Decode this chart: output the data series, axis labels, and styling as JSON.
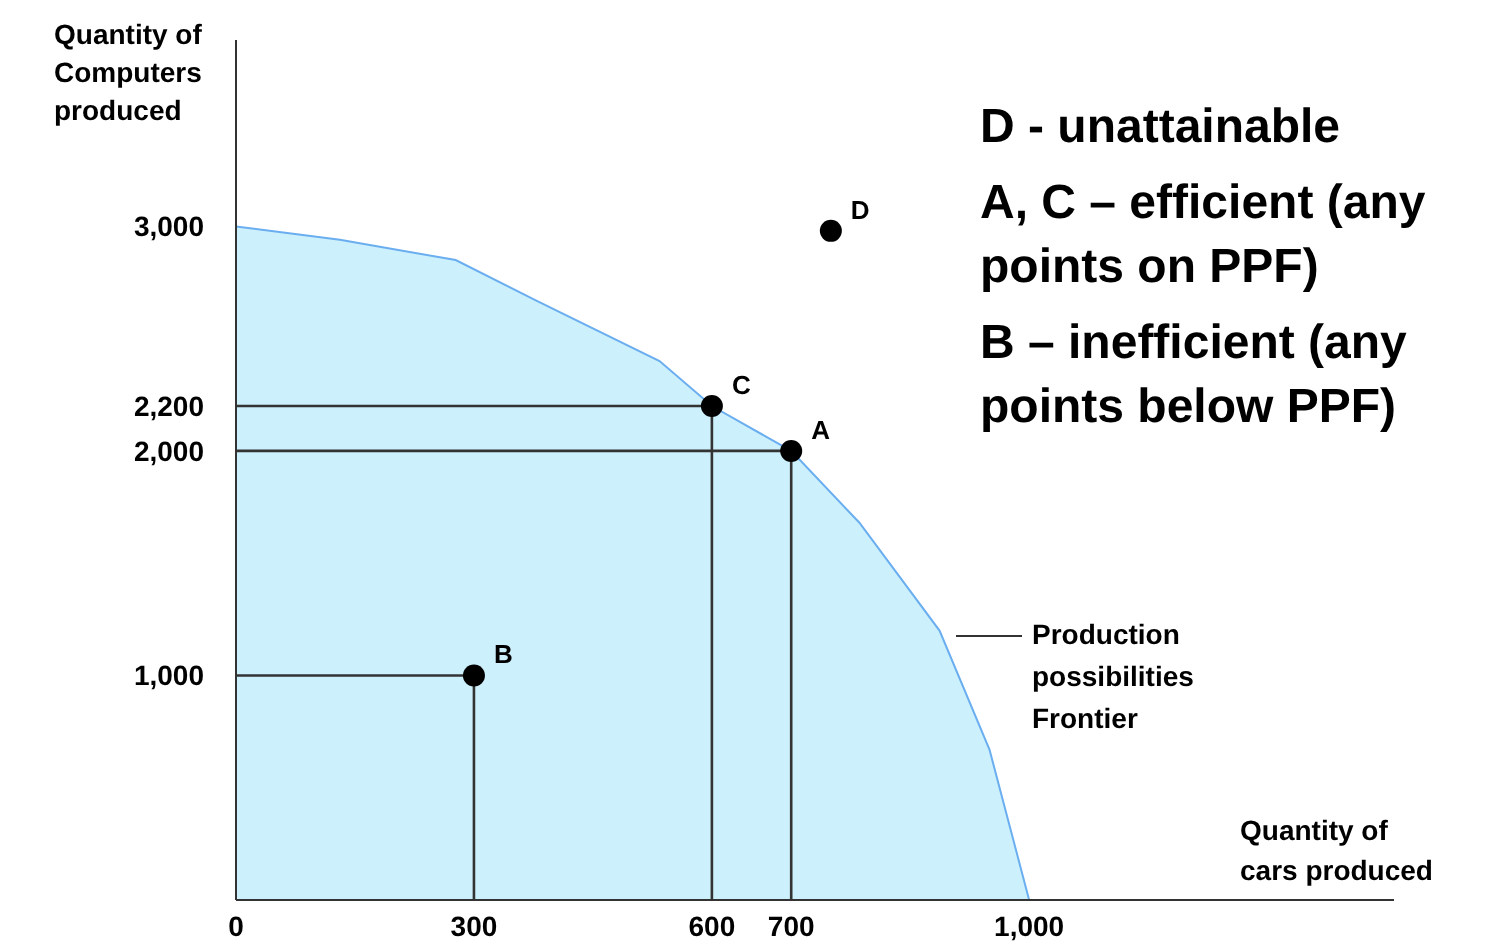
{
  "chart_data": {
    "type": "area",
    "xlabel": "Quantity of cars produced",
    "ylabel": "Quantity of Computers produced",
    "xlim": [
      0,
      1460
    ],
    "ylim": [
      0,
      3830
    ],
    "xticks": [
      0,
      300,
      600,
      700,
      {
        "value": 1000,
        "label": "1,000"
      }
    ],
    "yticks": [
      {
        "value": 1000,
        "label": "1,000"
      },
      {
        "value": 2000,
        "label": "2,000"
      },
      {
        "value": 2200,
        "label": "2,200"
      },
      {
        "value": 3000,
        "label": "3,000"
      }
    ],
    "grid": false,
    "legend": false,
    "marker": "circle",
    "series": [
      {
        "color": "#6aaef0",
        "marker": "none",
        "x": [
          0,
          131,
          277,
          378,
          534,
          600,
          700,
          786,
          887,
          950,
          1000
        ],
        "values": [
          3000,
          2940,
          2850,
          2670,
          2400,
          2200,
          2000,
          1680,
          1200,
          670,
          0
        ]
      },
      {
        "type": "line",
        "color": "#333333",
        "marker": "none",
        "x": [
          0,
          300,
          300
        ],
        "values": [
          1000,
          1000,
          0
        ]
      },
      {
        "type": "line",
        "color": "#333333",
        "marker": "none",
        "x": [
          0,
          600,
          600
        ],
        "values": [
          2200,
          2200,
          0
        ]
      },
      {
        "type": "line",
        "color": "#333333",
        "marker": "none",
        "x": [
          0,
          700,
          700
        ],
        "values": [
          2000,
          2000,
          0
        ]
      },
      {
        "type": "scatter",
        "name": "A",
        "color": "#000000",
        "x": [
          700
        ],
        "values": [
          2000
        ]
      },
      {
        "type": "scatter",
        "name": "B",
        "color": "#000000",
        "x": [
          300
        ],
        "values": [
          1000
        ]
      },
      {
        "type": "scatter",
        "name": "C",
        "color": "#000000",
        "x": [
          600
        ],
        "values": [
          2200
        ]
      },
      {
        "type": "scatter",
        "name": "D",
        "color": "#000000",
        "x": [
          750
        ],
        "values": [
          2980
        ]
      }
    ],
    "annotations": [
      "D - unattainable",
      "A, C – efficient (any points on PPF)",
      "B – inefficient (any points below PPF)",
      "Production possibilities Frontier"
    ]
  }
}
